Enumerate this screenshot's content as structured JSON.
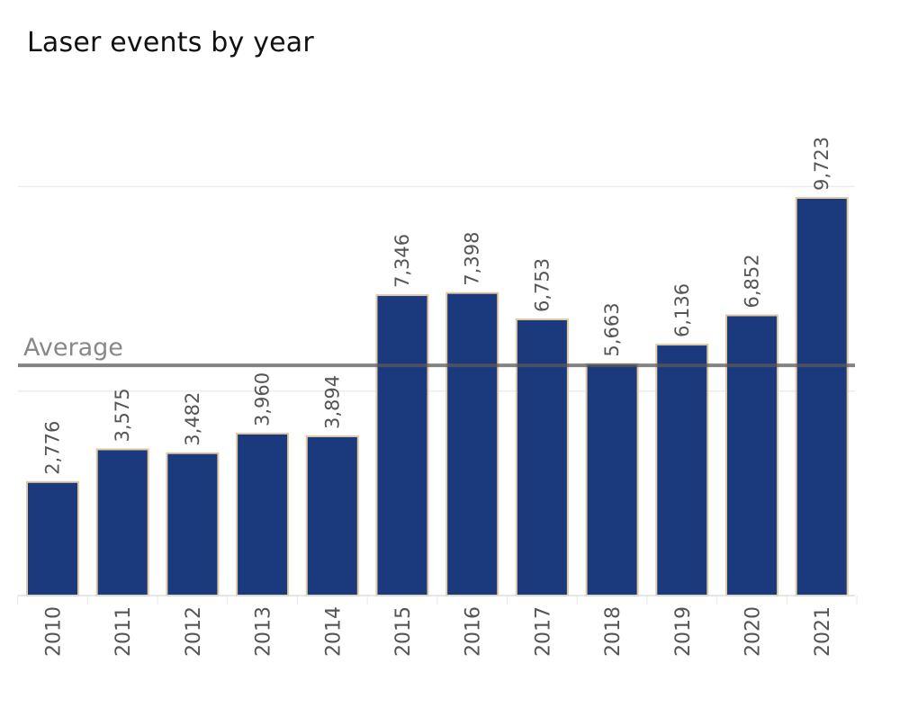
{
  "chart_data": {
    "type": "bar",
    "title": "Laser events by year",
    "xlabel": "",
    "ylabel": "",
    "categories": [
      "2010",
      "2011",
      "2012",
      "2013",
      "2014",
      "2015",
      "2016",
      "2017",
      "2018",
      "2019",
      "2020",
      "2021"
    ],
    "values": [
      2776,
      3575,
      3482,
      3960,
      3894,
      7346,
      7398,
      6753,
      5663,
      6136,
      6852,
      9723
    ],
    "value_labels": [
      "2,776",
      "3,575",
      "3,482",
      "3,960",
      "3,894",
      "7,346",
      "7,398",
      "6,753",
      "5,663",
      "6,136",
      "6,852",
      "9,723"
    ],
    "ylim": [
      0,
      12000
    ],
    "gridlines_at": [
      5000,
      10000
    ],
    "reference_line": {
      "label": "Average",
      "value": 5630
    },
    "colors": {
      "bar": "#1a3a7d",
      "bar_outline": "#e3c9a3",
      "grid": "#ececec",
      "reference_line": "#5a5a5a"
    },
    "grid": true,
    "legend": "none"
  }
}
